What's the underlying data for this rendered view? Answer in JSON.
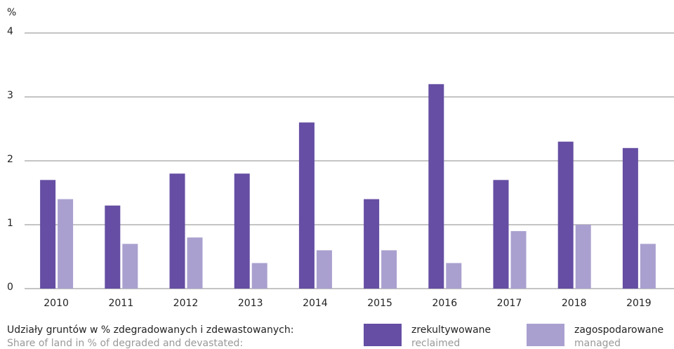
{
  "chart_data": {
    "type": "bar",
    "y_axis_label": "%",
    "legend_title": "Udziały gruntów w % zdegradowanych i zdewastowanych:",
    "legend_subtitle": "Share of land in % of degraded and devastated:",
    "categories": [
      "2010",
      "2011",
      "2012",
      "2013",
      "2014",
      "2015",
      "2016",
      "2017",
      "2018",
      "2019"
    ],
    "series": [
      {
        "name": "zrekultywowane",
        "subtitle": "reclaimed",
        "color": "#654ea3",
        "values": [
          1.7,
          1.3,
          1.8,
          1.8,
          2.6,
          1.4,
          3.2,
          1.7,
          2.3,
          2.2
        ]
      },
      {
        "name": "zagospodarowane",
        "subtitle": "managed",
        "color": "#aaa0cf",
        "values": [
          1.4,
          0.7,
          0.8,
          0.4,
          0.6,
          0.6,
          0.4,
          0.9,
          1.0,
          0.7
        ]
      }
    ],
    "ylim": [
      0,
      4
    ],
    "yticks": [
      0,
      1,
      2,
      3,
      4
    ],
    "grid": true
  }
}
